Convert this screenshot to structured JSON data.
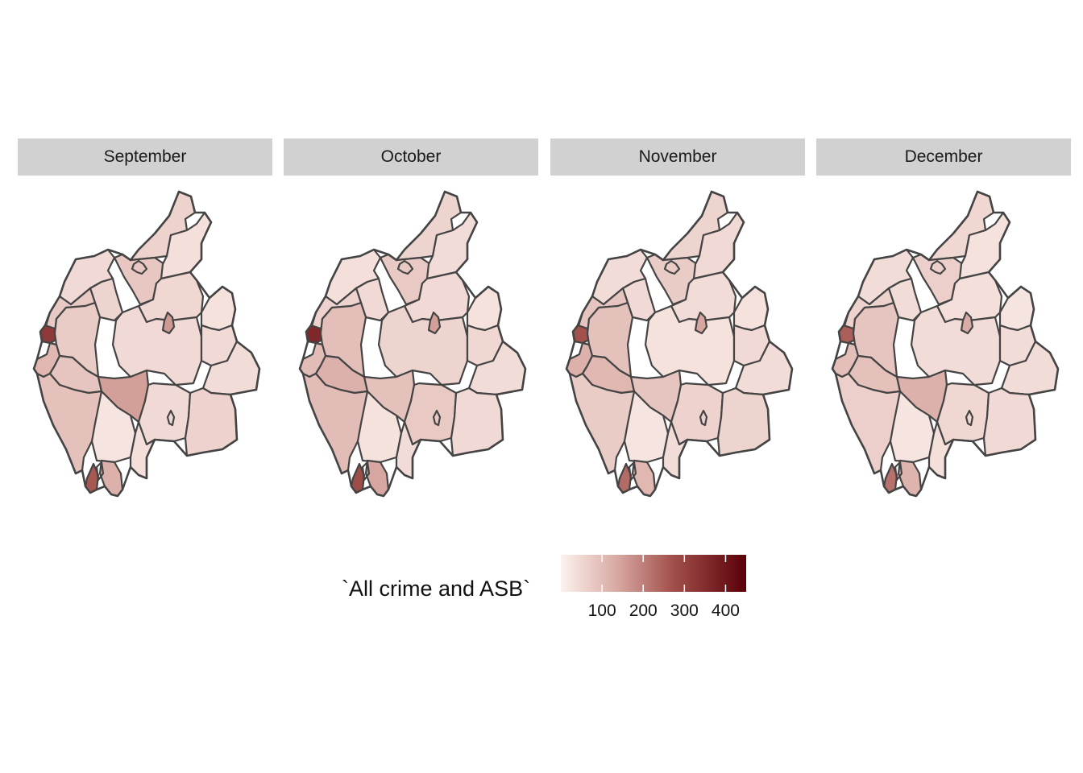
{
  "legend": {
    "title": "`All crime and ASB`",
    "min": 0,
    "max": 450,
    "ticks": [
      100,
      200,
      300,
      400
    ],
    "tick_labels": [
      "100",
      "200",
      "300",
      "400"
    ],
    "color_low": "#fdf2ee",
    "color_high": "#5a0008"
  },
  "facets": [
    {
      "title": "September",
      "values": {
        "north": 60,
        "northwest": 45,
        "west_inner": 55,
        "city_core": 80,
        "northeast": 35,
        "mid_north": 50,
        "west_coast_upper": 75,
        "coast_town": 320,
        "west_inland": 70,
        "central_big": 45,
        "penrith": 160,
        "east_upper": 30,
        "east_mid": 45,
        "coast_south_town": 110,
        "coast_lower": 85,
        "southwest": 90,
        "central_south": 150,
        "lakes_south": 25,
        "lakes_mid": 45,
        "kendal_area": 60,
        "southeast": 35,
        "barrow": 120,
        "barrow_core": 260
      }
    },
    {
      "title": "October",
      "values": {
        "north": 55,
        "northwest": 35,
        "west_inner": 45,
        "city_core": 75,
        "northeast": 40,
        "mid_north": 45,
        "west_coast_upper": 60,
        "coast_town": 360,
        "west_inland": 95,
        "central_big": 55,
        "penrith": 150,
        "east_upper": 30,
        "east_mid": 50,
        "coast_south_town": 100,
        "coast_lower": 120,
        "southwest": 100,
        "central_south": 90,
        "lakes_south": 30,
        "lakes_mid": 75,
        "kendal_area": 45,
        "southeast": 40,
        "barrow": 140,
        "barrow_core": 280
      }
    },
    {
      "title": "November",
      "values": {
        "north": 55,
        "northwest": 40,
        "west_inner": 45,
        "city_core": 70,
        "northeast": 45,
        "mid_north": 40,
        "west_coast_upper": 85,
        "coast_town": 270,
        "west_inland": 90,
        "central_big": 30,
        "penrith": 140,
        "east_upper": 30,
        "east_mid": 45,
        "coast_south_town": 120,
        "coast_lower": 110,
        "southwest": 70,
        "central_south": 85,
        "lakes_south": 25,
        "lakes_mid": 60,
        "kendal_area": 55,
        "southeast": 40,
        "barrow": 110,
        "barrow_core": 230
      }
    },
    {
      "title": "December",
      "values": {
        "north": 50,
        "northwest": 40,
        "west_inner": 40,
        "city_core": 65,
        "northeast": 30,
        "mid_north": 35,
        "west_coast_upper": 60,
        "coast_town": 250,
        "west_inland": 85,
        "central_big": 40,
        "penrith": 130,
        "east_upper": 25,
        "east_mid": 40,
        "coast_south_town": 95,
        "coast_lower": 90,
        "southwest": 65,
        "central_south": 120,
        "lakes_south": 25,
        "lakes_mid": 50,
        "kendal_area": 45,
        "southeast": 35,
        "barrow": 115,
        "barrow_core": 220
      }
    }
  ]
}
